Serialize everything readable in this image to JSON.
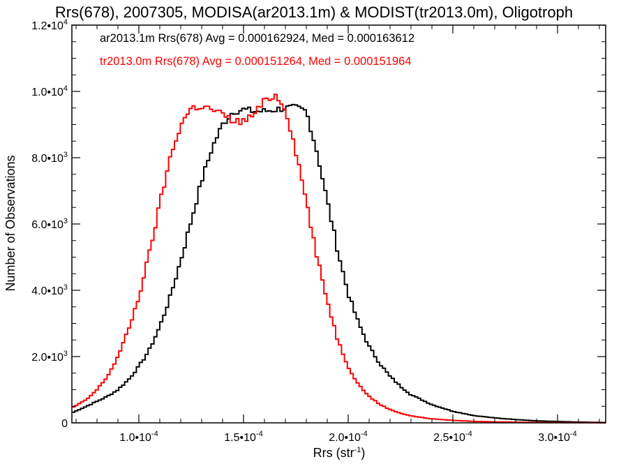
{
  "chart_data": {
    "type": "line",
    "title": "Rrs(678), 2007305, MODISA(ar2013.1m) & MODIST(tr2013.0m), Oligotroph",
    "xlabel": "Rrs (str",
    "xlabel_sup": "-1",
    "xlabel_close": ")",
    "ylabel": "Number of Observations",
    "xlim": [
      6.8e-05,
      0.000323
    ],
    "ylim": [
      0,
      12000
    ],
    "grid": false,
    "legend_placement": "top-left",
    "x_ticks": [
      {
        "value": 0.0001,
        "mant": "1.0•10",
        "exp": "-4"
      },
      {
        "value": 0.00015,
        "mant": "1.5•10",
        "exp": "-4"
      },
      {
        "value": 0.0002,
        "mant": "2.0•10",
        "exp": "-4"
      },
      {
        "value": 0.00025,
        "mant": "2.5•10",
        "exp": "-4"
      },
      {
        "value": 0.0003,
        "mant": "3.0•10",
        "exp": "-4"
      }
    ],
    "y_ticks": [
      {
        "value": 0,
        "mant": "0",
        "exp": ""
      },
      {
        "value": 2000,
        "mant": "2.0•10",
        "exp": "3"
      },
      {
        "value": 4000,
        "mant": "4.0•10",
        "exp": "3"
      },
      {
        "value": 6000,
        "mant": "6.0•10",
        "exp": "3"
      },
      {
        "value": 8000,
        "mant": "8.0•10",
        "exp": "3"
      },
      {
        "value": 10000,
        "mant": "1.0•10",
        "exp": "4"
      },
      {
        "value": 12000,
        "mant": "1.2•10",
        "exp": "4"
      }
    ],
    "series": [
      {
        "name": "ar2013.1m Rrs(678) Avg = 0.000162924, Med = 0.000163612",
        "color": "#000000",
        "x": [
          6.8e-05,
          7.5e-05,
          8e-05,
          8.5e-05,
          9e-05,
          9.5e-05,
          0.0001,
          0.000105,
          0.00011,
          0.000115,
          0.00012,
          0.000125,
          0.00013,
          0.000135,
          0.00014,
          0.000145,
          0.00015,
          0.000155,
          0.00016,
          0.000165,
          0.00017,
          0.000175,
          0.00018,
          0.000185,
          0.00019,
          0.000195,
          0.0002,
          0.000205,
          0.00021,
          0.000215,
          0.00022,
          0.000225,
          0.00023,
          0.00024,
          0.00025,
          0.00026,
          0.00027,
          0.00028,
          0.00029,
          0.0003,
          0.00031,
          0.000323
        ],
        "y": [
          300,
          500,
          650,
          800,
          1000,
          1300,
          1700,
          2200,
          2900,
          3800,
          4900,
          6100,
          7300,
          8300,
          9000,
          9400,
          9450,
          9400,
          9400,
          9450,
          9500,
          9500,
          9400,
          8200,
          6700,
          5200,
          3900,
          3000,
          2300,
          1800,
          1400,
          1100,
          850,
          550,
          350,
          220,
          150,
          100,
          60,
          40,
          25,
          10
        ]
      },
      {
        "name": "tr2013.0m Rrs(678) Avg = 0.000151264, Med = 0.000151964",
        "color": "#ff0000",
        "x": [
          6.8e-05,
          7.5e-05,
          8e-05,
          8.5e-05,
          9e-05,
          9.5e-05,
          0.0001,
          0.000105,
          0.00011,
          0.000115,
          0.00012,
          0.000125,
          0.00013,
          0.000135,
          0.00014,
          0.000145,
          0.00015,
          0.000155,
          0.00016,
          0.000165,
          0.00017,
          0.000175,
          0.00018,
          0.000185,
          0.00019,
          0.000195,
          0.0002,
          0.000205,
          0.00021,
          0.000215,
          0.00022,
          0.000225,
          0.00023,
          0.00024,
          0.00025,
          0.00026,
          0.00027,
          0.00028,
          0.00029,
          0.0003,
          0.00031,
          0.000323
        ],
        "y": [
          450,
          700,
          1000,
          1400,
          2000,
          2800,
          3800,
          5100,
          6600,
          8000,
          9000,
          9500,
          9550,
          9450,
          9300,
          9100,
          9100,
          9300,
          9700,
          9900,
          9500,
          8200,
          6700,
          5000,
          3700,
          2500,
          1700,
          1150,
          800,
          560,
          400,
          290,
          210,
          120,
          75,
          45,
          30,
          20,
          12,
          8,
          5,
          2
        ]
      }
    ]
  }
}
